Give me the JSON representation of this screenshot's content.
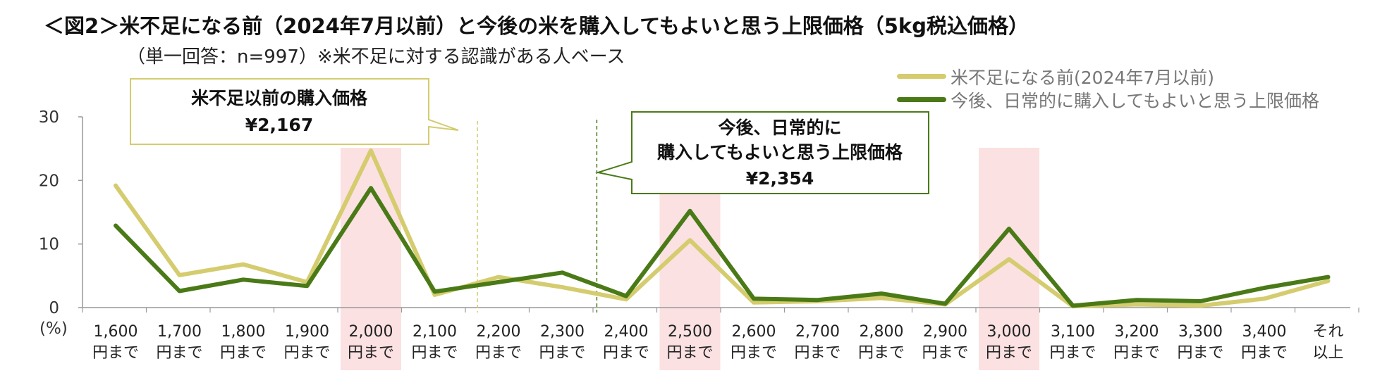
{
  "title": "＜図2＞米不足になる前（2024年7月以前）と今後の米を購入してもよいと思う上限価格（5kg税込価格）",
  "subtitle": "（単一回答：n=997）※米不足に対する認識がある人ベース",
  "colors": {
    "before": "#d4cc6e",
    "after": "#4a7a17",
    "highlight": "#fbe1e1",
    "axis": "#999999"
  },
  "callouts": [
    {
      "name": "before-callout",
      "lines": [
        "米不足以前の購入価格",
        "¥2,167"
      ]
    },
    {
      "name": "after-callout",
      "lines": [
        "今後、日常的に",
        "購入してもよいと思う上限価格",
        "¥2,354"
      ]
    }
  ],
  "chart_data": {
    "type": "line",
    "title": "＜図2＞米不足になる前（2024年7月以前）と今後の米を購入してもよいと思う上限価格（5kg税込価格）",
    "ylabel": "(%)",
    "ylim": [
      0,
      30
    ],
    "yticks": [
      0,
      10,
      20,
      30
    ],
    "grid": false,
    "legend_position": "top-right",
    "categories": [
      [
        "1,600",
        "円まで"
      ],
      [
        "1,700",
        "円まで"
      ],
      [
        "1,800",
        "円まで"
      ],
      [
        "1,900",
        "円まで"
      ],
      [
        "2,000",
        "円まで"
      ],
      [
        "2,100",
        "円まで"
      ],
      [
        "2,200",
        "円まで"
      ],
      [
        "2,300",
        "円まで"
      ],
      [
        "2,400",
        "円まで"
      ],
      [
        "2,500",
        "円まで"
      ],
      [
        "2,600",
        "円まで"
      ],
      [
        "2,700",
        "円まで"
      ],
      [
        "2,800",
        "円まで"
      ],
      [
        "2,900",
        "円まで"
      ],
      [
        "3,000",
        "円まで"
      ],
      [
        "3,100",
        "円まで"
      ],
      [
        "3,200",
        "円まで"
      ],
      [
        "3,300",
        "円まで"
      ],
      [
        "3,400",
        "円まで"
      ],
      [
        "それ",
        "以上"
      ]
    ],
    "highlighted_categories": [
      "2,000",
      "2,500",
      "3,000"
    ],
    "reference_lines": [
      {
        "series": "米不足になる前(2024年7月以前)",
        "value": 2167,
        "label": "¥2,167"
      },
      {
        "series": "今後、日常的に購入してもよいと思う上限価格",
        "value": 2354,
        "label": "¥2,354"
      }
    ],
    "series": [
      {
        "name": "米不足になる前(2024年7月以前)",
        "color": "#d4cc6e",
        "values": [
          19.2,
          5.1,
          6.8,
          4.0,
          24.7,
          2.0,
          4.8,
          3.2,
          1.3,
          10.6,
          0.8,
          1.0,
          1.5,
          0.5,
          7.6,
          0.2,
          0.5,
          0.3,
          1.4,
          4.2
        ]
      },
      {
        "name": "今後、日常的に購入してもよいと思う上限価格",
        "color": "#4a7a17",
        "values": [
          12.9,
          2.6,
          4.4,
          3.4,
          18.8,
          2.5,
          4.0,
          5.5,
          1.8,
          15.2,
          1.4,
          1.2,
          2.2,
          0.6,
          12.4,
          0.3,
          1.2,
          1.0,
          3.1,
          4.8
        ]
      }
    ]
  }
}
